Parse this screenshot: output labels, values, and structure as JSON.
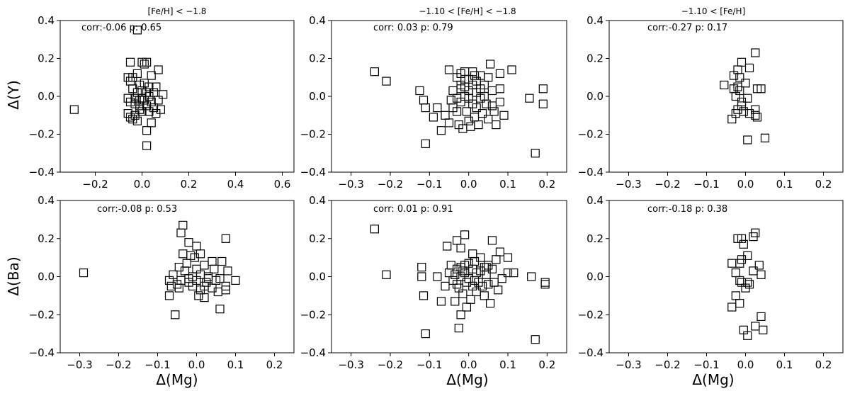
{
  "figure": {
    "ylabels": {
      "row1": "Δ(Y)",
      "row2": "Δ(Ba)"
    },
    "xlabel": "Δ(Mg)",
    "titles": [
      "[Fe/H] < −1.8",
      "−1.10 < [Fe/H] < −1.8",
      "−1.10 < [Fe/H]"
    ],
    "marker": "open-square",
    "marker_color": "#000000"
  },
  "chart_data": [
    {
      "type": "scatter",
      "title": "[Fe/H] < −1.8",
      "xlabel": "",
      "ylabel": "Δ(Y)",
      "annotation": "corr:-0.06 p: 0.65",
      "xlim": [
        -0.35,
        0.65
      ],
      "ylim": [
        -0.4,
        0.4
      ],
      "xticks": [
        -0.2,
        0.0,
        0.2,
        0.4,
        0.6
      ],
      "xtick_labels": [
        "−0.2",
        "0.0",
        "0.2",
        "0.4",
        "0.6"
      ],
      "yticks": [
        -0.4,
        -0.2,
        0.0,
        0.2,
        0.4
      ],
      "ytick_labels": [
        "−0.4",
        "−0.2",
        "0.0",
        "0.2",
        "0.4"
      ],
      "points": [
        [
          -0.29,
          -0.07
        ],
        [
          -0.02,
          0.35
        ],
        [
          -0.05,
          0.18
        ],
        [
          0.0,
          0.18
        ],
        [
          0.02,
          0.18
        ],
        [
          0.01,
          0.17
        ],
        [
          0.07,
          0.14
        ],
        [
          -0.06,
          0.1
        ],
        [
          -0.04,
          0.1
        ],
        [
          -0.02,
          0.12
        ],
        [
          0.04,
          0.11
        ],
        [
          -0.05,
          0.08
        ],
        [
          0.01,
          0.07
        ],
        [
          -0.01,
          0.06
        ],
        [
          0.03,
          0.05
        ],
        [
          0.06,
          0.05
        ],
        [
          -0.04,
          0.04
        ],
        [
          0.0,
          0.03
        ],
        [
          -0.02,
          0.02
        ],
        [
          0.02,
          0.02
        ],
        [
          0.05,
          0.02
        ],
        [
          0.09,
          0.01
        ],
        [
          -0.06,
          -0.01
        ],
        [
          -0.03,
          -0.01
        ],
        [
          0.0,
          -0.01
        ],
        [
          0.03,
          0.0
        ],
        [
          -0.05,
          -0.03
        ],
        [
          -0.01,
          -0.02
        ],
        [
          0.01,
          -0.02
        ],
        [
          0.04,
          -0.03
        ],
        [
          0.07,
          -0.02
        ],
        [
          -0.03,
          -0.04
        ],
        [
          0.02,
          -0.05
        ],
        [
          0.05,
          -0.06
        ],
        [
          -0.06,
          -0.09
        ],
        [
          -0.01,
          -0.07
        ],
        [
          0.0,
          -0.08
        ],
        [
          0.03,
          -0.08
        ],
        [
          0.06,
          -0.09
        ],
        [
          0.08,
          -0.07
        ],
        [
          -0.03,
          -0.1
        ],
        [
          -0.05,
          -0.11
        ],
        [
          -0.02,
          -0.13
        ],
        [
          0.04,
          -0.14
        ],
        [
          0.02,
          -0.18
        ],
        [
          0.02,
          -0.26
        ],
        [
          -0.04,
          -0.12
        ],
        [
          -0.01,
          -0.05
        ]
      ]
    },
    {
      "type": "scatter",
      "title": "−1.10 < [Fe/H] < −1.8",
      "xlabel": "",
      "ylabel": "",
      "annotation": "corr: 0.03 p: 0.79",
      "xlim": [
        -0.35,
        0.25
      ],
      "ylim": [
        -0.4,
        0.4
      ],
      "xticks": [
        -0.3,
        -0.2,
        -0.1,
        0.0,
        0.1,
        0.2
      ],
      "xtick_labels": [
        "−0.3",
        "−0.2",
        "−0.1",
        "0.0",
        "0.1",
        "0.2"
      ],
      "yticks": [
        -0.4,
        -0.2,
        0.0,
        0.2,
        0.4
      ],
      "ytick_labels": [
        "−0.4",
        "−0.2",
        "0.0",
        "0.2",
        "0.4"
      ],
      "points": [
        [
          -0.24,
          0.13
        ],
        [
          -0.21,
          0.08
        ],
        [
          -0.125,
          0.03
        ],
        [
          -0.115,
          -0.02
        ],
        [
          -0.11,
          -0.06
        ],
        [
          -0.11,
          -0.25
        ],
        [
          -0.08,
          -0.06
        ],
        [
          -0.07,
          -0.18
        ],
        [
          -0.06,
          -0.1
        ],
        [
          -0.05,
          -0.14
        ],
        [
          -0.05,
          0.14
        ],
        [
          -0.04,
          0.03
        ],
        [
          -0.04,
          -0.06
        ],
        [
          -0.03,
          0.1
        ],
        [
          -0.03,
          -0.01
        ],
        [
          -0.025,
          -0.15
        ],
        [
          -0.02,
          0.12
        ],
        [
          -0.02,
          0.06
        ],
        [
          -0.02,
          0.04
        ],
        [
          -0.02,
          -0.03
        ],
        [
          -0.015,
          -0.17
        ],
        [
          -0.01,
          0.13
        ],
        [
          -0.01,
          0.05
        ],
        [
          -0.01,
          0.0
        ],
        [
          -0.005,
          -0.08
        ],
        [
          0.0,
          0.09
        ],
        [
          0.0,
          0.03
        ],
        [
          0.0,
          -0.01
        ],
        [
          0.005,
          -0.16
        ],
        [
          0.01,
          0.13
        ],
        [
          0.01,
          0.06
        ],
        [
          0.01,
          -0.04
        ],
        [
          0.015,
          -0.11
        ],
        [
          0.02,
          0.08
        ],
        [
          0.02,
          0.02
        ],
        [
          0.02,
          -0.06
        ],
        [
          0.025,
          -0.15
        ],
        [
          0.03,
          0.11
        ],
        [
          0.03,
          0.04
        ],
        [
          0.03,
          -0.01
        ],
        [
          0.035,
          -0.09
        ],
        [
          0.04,
          0.06
        ],
        [
          0.04,
          0.0
        ],
        [
          0.045,
          -0.04
        ],
        [
          0.05,
          0.1
        ],
        [
          0.05,
          -0.12
        ],
        [
          0.055,
          0.17
        ],
        [
          0.06,
          0.03
        ],
        [
          0.06,
          -0.05
        ],
        [
          0.07,
          -0.15
        ],
        [
          0.08,
          0.12
        ],
        [
          0.08,
          0.04
        ],
        [
          0.08,
          -0.03
        ],
        [
          0.09,
          -0.1
        ],
        [
          0.11,
          0.14
        ],
        [
          0.155,
          -0.01
        ],
        [
          0.17,
          -0.3
        ],
        [
          0.19,
          0.04
        ],
        [
          0.19,
          -0.04
        ],
        [
          -0.09,
          -0.11
        ],
        [
          -0.03,
          -0.08
        ],
        [
          0.015,
          0.11
        ],
        [
          -0.045,
          -0.02
        ],
        [
          0.065,
          -0.08
        ],
        [
          0.0,
          -0.13
        ],
        [
          -0.01,
          0.09
        ]
      ]
    },
    {
      "type": "scatter",
      "title": "−1.10 < [Fe/H]",
      "xlabel": "",
      "ylabel": "",
      "annotation": "corr:-0.27 p: 0.17",
      "xlim": [
        -0.35,
        0.25
      ],
      "ylim": [
        -0.4,
        0.4
      ],
      "xticks": [
        -0.3,
        -0.2,
        -0.1,
        0.0,
        0.1,
        0.2
      ],
      "xtick_labels": [
        "−0.3",
        "−0.2",
        "−0.1",
        "0.0",
        "0.1",
        "0.2"
      ],
      "yticks": [
        -0.4,
        -0.2,
        0.0,
        0.2,
        0.4
      ],
      "ytick_labels": [
        "−0.4",
        "−0.2",
        "0.0",
        "0.2",
        "0.4"
      ],
      "points": [
        [
          0.025,
          0.23
        ],
        [
          -0.01,
          0.18
        ],
        [
          -0.02,
          0.14
        ],
        [
          0.01,
          0.15
        ],
        [
          -0.03,
          0.11
        ],
        [
          -0.015,
          0.1
        ],
        [
          0.0,
          0.07
        ],
        [
          -0.055,
          0.06
        ],
        [
          -0.02,
          0.05
        ],
        [
          -0.03,
          0.04
        ],
        [
          0.04,
          0.04
        ],
        [
          0.03,
          0.04
        ],
        [
          -0.015,
          0.03
        ],
        [
          0.005,
          -0.01
        ],
        [
          -0.01,
          -0.05
        ],
        [
          -0.02,
          -0.07
        ],
        [
          0.025,
          -0.07
        ],
        [
          -0.005,
          -0.08
        ],
        [
          -0.025,
          -0.09
        ],
        [
          0.01,
          -0.09
        ],
        [
          0.025,
          -0.1
        ],
        [
          0.03,
          -0.11
        ],
        [
          -0.035,
          -0.12
        ],
        [
          0.005,
          -0.23
        ],
        [
          0.05,
          -0.22
        ],
        [
          -0.01,
          -0.03
        ],
        [
          -0.025,
          0.0
        ]
      ]
    },
    {
      "type": "scatter",
      "title": "",
      "xlabel": "Δ(Mg)",
      "ylabel": "Δ(Ba)",
      "annotation": "corr:-0.08 p: 0.53",
      "xlim": [
        -0.35,
        0.25
      ],
      "ylim": [
        -0.4,
        0.4
      ],
      "xticks": [
        -0.3,
        -0.2,
        -0.1,
        0.0,
        0.1,
        0.2
      ],
      "xtick_labels": [
        "−0.3",
        "−0.2",
        "−0.1",
        "0.0",
        "0.1",
        "0.2"
      ],
      "yticks": [
        -0.4,
        -0.2,
        0.0,
        0.2,
        0.4
      ],
      "ytick_labels": [
        "−0.4",
        "−0.2",
        "0.0",
        "0.2",
        "0.4"
      ],
      "points": [
        [
          -0.29,
          0.02
        ],
        [
          -0.035,
          0.27
        ],
        [
          -0.04,
          0.23
        ],
        [
          0.075,
          0.2
        ],
        [
          -0.02,
          0.18
        ],
        [
          0.0,
          0.16
        ],
        [
          -0.035,
          0.12
        ],
        [
          -0.015,
          0.11
        ],
        [
          0.01,
          0.12
        ],
        [
          -0.005,
          0.1
        ],
        [
          0.04,
          0.08
        ],
        [
          0.065,
          0.08
        ],
        [
          -0.025,
          0.07
        ],
        [
          0.02,
          0.06
        ],
        [
          -0.045,
          0.05
        ],
        [
          0.0,
          0.04
        ],
        [
          0.045,
          0.04
        ],
        [
          0.08,
          0.03
        ],
        [
          -0.03,
          0.03
        ],
        [
          -0.06,
          0.01
        ],
        [
          0.01,
          0.01
        ],
        [
          -0.01,
          0.0
        ],
        [
          0.03,
          -0.01
        ],
        [
          0.06,
          -0.01
        ],
        [
          -0.07,
          -0.02
        ],
        [
          -0.04,
          -0.02
        ],
        [
          -0.02,
          -0.03
        ],
        [
          0.0,
          -0.02
        ],
        [
          0.025,
          -0.03
        ],
        [
          0.05,
          -0.02
        ],
        [
          0.1,
          -0.02
        ],
        [
          -0.065,
          -0.05
        ],
        [
          -0.05,
          -0.04
        ],
        [
          -0.01,
          -0.05
        ],
        [
          0.02,
          -0.05
        ],
        [
          0.04,
          -0.06
        ],
        [
          0.075,
          -0.05
        ],
        [
          -0.045,
          -0.06
        ],
        [
          0.01,
          -0.07
        ],
        [
          0.055,
          -0.08
        ],
        [
          0.075,
          -0.07
        ],
        [
          -0.07,
          -0.1
        ],
        [
          0.005,
          -0.1
        ],
        [
          0.02,
          -0.11
        ],
        [
          0.06,
          -0.17
        ],
        [
          -0.055,
          -0.2
        ],
        [
          -0.02,
          -0.01
        ],
        [
          0.03,
          0.0
        ]
      ]
    },
    {
      "type": "scatter",
      "title": "",
      "xlabel": "Δ(Mg)",
      "ylabel": "",
      "annotation": "corr: 0.01 p: 0.91",
      "xlim": [
        -0.35,
        0.25
      ],
      "ylim": [
        -0.4,
        0.4
      ],
      "xticks": [
        -0.3,
        -0.2,
        -0.1,
        0.0,
        0.1,
        0.2
      ],
      "xtick_labels": [
        "−0.3",
        "−0.2",
        "−0.1",
        "0.0",
        "0.1",
        "0.2"
      ],
      "yticks": [
        -0.4,
        -0.2,
        0.0,
        0.2,
        0.4
      ],
      "ytick_labels": [
        "−0.4",
        "−0.2",
        "0.0",
        "0.2",
        "0.4"
      ],
      "points": [
        [
          -0.24,
          0.25
        ],
        [
          -0.21,
          0.01
        ],
        [
          -0.12,
          0.05
        ],
        [
          -0.12,
          0.0
        ],
        [
          -0.115,
          -0.1
        ],
        [
          -0.11,
          -0.3
        ],
        [
          -0.08,
          0.0
        ],
        [
          -0.07,
          -0.13
        ],
        [
          -0.06,
          -0.05
        ],
        [
          -0.055,
          0.16
        ],
        [
          -0.05,
          0.02
        ],
        [
          -0.045,
          0.06
        ],
        [
          -0.04,
          -0.02
        ],
        [
          -0.035,
          -0.13
        ],
        [
          -0.03,
          0.19
        ],
        [
          -0.03,
          0.04
        ],
        [
          -0.03,
          -0.04
        ],
        [
          -0.025,
          -0.06
        ],
        [
          -0.025,
          -0.27
        ],
        [
          -0.02,
          0.15
        ],
        [
          -0.02,
          0.05
        ],
        [
          -0.02,
          0.0
        ],
        [
          -0.02,
          -0.2
        ],
        [
          -0.015,
          -0.09
        ],
        [
          -0.01,
          0.22
        ],
        [
          -0.01,
          0.06
        ],
        [
          -0.01,
          0.02
        ],
        [
          -0.005,
          -0.03
        ],
        [
          -0.005,
          -0.16
        ],
        [
          0.0,
          0.07
        ],
        [
          0.0,
          -0.01
        ],
        [
          0.005,
          -0.12
        ],
        [
          0.01,
          0.12
        ],
        [
          0.01,
          0.04
        ],
        [
          0.01,
          -0.05
        ],
        [
          0.015,
          0.08
        ],
        [
          0.02,
          0.02
        ],
        [
          0.02,
          -0.08
        ],
        [
          0.025,
          -0.03
        ],
        [
          0.03,
          0.1
        ],
        [
          0.03,
          0.03
        ],
        [
          0.035,
          -0.05
        ],
        [
          0.04,
          0.05
        ],
        [
          0.04,
          -0.1
        ],
        [
          0.045,
          0.01
        ],
        [
          0.05,
          0.06
        ],
        [
          0.05,
          -0.04
        ],
        [
          0.055,
          -0.14
        ],
        [
          0.06,
          0.19
        ],
        [
          0.06,
          0.04
        ],
        [
          0.065,
          -0.03
        ],
        [
          0.07,
          0.09
        ],
        [
          0.075,
          -0.07
        ],
        [
          0.08,
          0.13
        ],
        [
          0.085,
          -0.01
        ],
        [
          0.1,
          0.1
        ],
        [
          0.1,
          0.02
        ],
        [
          0.115,
          0.02
        ],
        [
          0.16,
          0.0
        ],
        [
          0.17,
          -0.33
        ],
        [
          0.195,
          -0.03
        ],
        [
          0.195,
          -0.04
        ],
        [
          -0.015,
          0.03
        ],
        [
          0.015,
          -0.02
        ],
        [
          -0.035,
          0.01
        ],
        [
          0.045,
          0.05
        ]
      ]
    },
    {
      "type": "scatter",
      "title": "",
      "xlabel": "Δ(Mg)",
      "ylabel": "",
      "annotation": "corr:-0.18 p: 0.38",
      "xlim": [
        -0.35,
        0.25
      ],
      "ylim": [
        -0.4,
        0.4
      ],
      "xticks": [
        -0.3,
        -0.2,
        -0.1,
        0.0,
        0.1,
        0.2
      ],
      "xtick_labels": [
        "−0.3",
        "−0.2",
        "−0.1",
        "0.0",
        "0.1",
        "0.2"
      ],
      "yticks": [
        -0.4,
        -0.2,
        0.0,
        0.2,
        0.4
      ],
      "ytick_labels": [
        "−0.4",
        "−0.2",
        "0.0",
        "0.2",
        "0.4"
      ],
      "points": [
        [
          0.025,
          0.23
        ],
        [
          -0.02,
          0.2
        ],
        [
          -0.01,
          0.2
        ],
        [
          0.02,
          0.21
        ],
        [
          -0.005,
          0.17
        ],
        [
          0.005,
          0.11
        ],
        [
          -0.01,
          0.09
        ],
        [
          -0.035,
          0.07
        ],
        [
          -0.015,
          0.07
        ],
        [
          0.035,
          0.06
        ],
        [
          0.02,
          0.03
        ],
        [
          -0.025,
          0.02
        ],
        [
          0.04,
          0.01
        ],
        [
          -0.015,
          -0.02
        ],
        [
          0.005,
          -0.03
        ],
        [
          0.0,
          -0.06
        ],
        [
          -0.025,
          -0.1
        ],
        [
          -0.015,
          -0.14
        ],
        [
          -0.035,
          -0.16
        ],
        [
          0.04,
          -0.21
        ],
        [
          0.025,
          -0.26
        ],
        [
          0.045,
          -0.28
        ],
        [
          -0.005,
          -0.28
        ],
        [
          0.005,
          -0.31
        ],
        [
          0.01,
          -0.04
        ],
        [
          -0.01,
          -0.03
        ]
      ]
    }
  ]
}
